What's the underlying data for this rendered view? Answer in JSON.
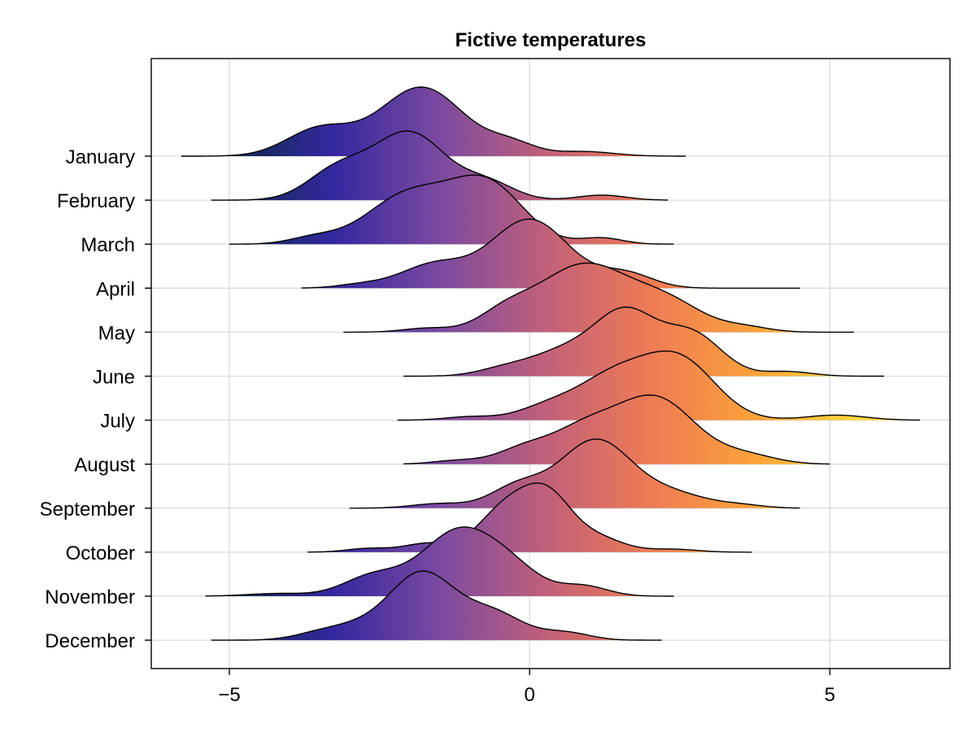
{
  "chart_data": {
    "type": "ridgeline",
    "title": "Fictive temperatures",
    "xlabel": "",
    "ylabel": "",
    "xlim": [
      -6.3,
      7.0
    ],
    "x_ticks": [
      -5,
      0,
      5
    ],
    "x_tick_labels": [
      "−5",
      "0",
      "5"
    ],
    "grid": true,
    "colormap": [
      "#0d2a4a",
      "#3528a0",
      "#7a4aa0",
      "#c0607a",
      "#ee7a55",
      "#fba23a",
      "#fdd83c"
    ],
    "color_range": [
      -5,
      5.5
    ],
    "categories": [
      "January",
      "February",
      "March",
      "April",
      "May",
      "June",
      "July",
      "August",
      "September",
      "October",
      "November",
      "December"
    ],
    "series": [
      {
        "name": "January",
        "x_range": [
          -5.8,
          2.6
        ],
        "components": [
          [
            -1.8,
            0.7,
            0.9
          ],
          [
            -3.5,
            0.55,
            0.35
          ],
          [
            -0.3,
            0.4,
            0.15
          ],
          [
            0.9,
            0.5,
            0.06
          ]
        ]
      },
      {
        "name": "February",
        "x_range": [
          -5.3,
          2.3
        ],
        "components": [
          [
            -2.0,
            0.6,
            0.8
          ],
          [
            -3.2,
            0.5,
            0.35
          ],
          [
            -0.7,
            0.45,
            0.2
          ],
          [
            1.2,
            0.4,
            0.06
          ]
        ]
      },
      {
        "name": "March",
        "x_range": [
          -5.0,
          2.4
        ],
        "components": [
          [
            -0.7,
            0.6,
            0.75
          ],
          [
            -2.0,
            0.7,
            0.65
          ],
          [
            -3.6,
            0.4,
            0.08
          ],
          [
            1.2,
            0.35,
            0.08
          ]
        ]
      },
      {
        "name": "April",
        "x_range": [
          -3.8,
          4.5
        ],
        "components": [
          [
            0.0,
            0.65,
            0.95
          ],
          [
            -1.6,
            0.55,
            0.32
          ],
          [
            1.6,
            0.45,
            0.2
          ],
          [
            -2.8,
            0.4,
            0.05
          ]
        ]
      },
      {
        "name": "May",
        "x_range": [
          -3.1,
          5.4
        ],
        "components": [
          [
            0.9,
            0.75,
            0.85
          ],
          [
            2.3,
            0.6,
            0.35
          ],
          [
            -0.4,
            0.45,
            0.22
          ],
          [
            -1.7,
            0.4,
            0.05
          ],
          [
            3.6,
            0.4,
            0.06
          ]
        ]
      },
      {
        "name": "June",
        "x_range": [
          -2.1,
          5.9
        ],
        "components": [
          [
            1.6,
            0.5,
            0.8
          ],
          [
            2.7,
            0.5,
            0.55
          ],
          [
            0.6,
            0.55,
            0.32
          ],
          [
            -0.4,
            0.45,
            0.1
          ],
          [
            4.3,
            0.4,
            0.06
          ]
        ]
      },
      {
        "name": "July",
        "x_range": [
          -2.2,
          6.5
        ],
        "components": [
          [
            2.5,
            0.6,
            0.7
          ],
          [
            1.4,
            0.6,
            0.5
          ],
          [
            0.3,
            0.5,
            0.15
          ],
          [
            -1.0,
            0.4,
            0.04
          ],
          [
            5.1,
            0.5,
            0.06
          ]
        ]
      },
      {
        "name": "August",
        "x_range": [
          -2.1,
          5.0
        ],
        "components": [
          [
            2.1,
            0.65,
            0.9
          ],
          [
            0.9,
            0.55,
            0.45
          ],
          [
            -0.1,
            0.45,
            0.2
          ],
          [
            -1.2,
            0.4,
            0.05
          ],
          [
            3.6,
            0.5,
            0.12
          ]
        ]
      },
      {
        "name": "September",
        "x_range": [
          -3.0,
          4.5
        ],
        "components": [
          [
            1.1,
            0.6,
            0.9
          ],
          [
            -0.2,
            0.45,
            0.28
          ],
          [
            2.4,
            0.55,
            0.18
          ],
          [
            -1.5,
            0.45,
            0.06
          ],
          [
            3.5,
            0.4,
            0.04
          ]
        ]
      },
      {
        "name": "October",
        "x_range": [
          -3.7,
          3.7
        ],
        "components": [
          [
            0.3,
            0.4,
            0.7
          ],
          [
            -0.4,
            0.45,
            0.6
          ],
          [
            1.1,
            0.45,
            0.2
          ],
          [
            -1.7,
            0.4,
            0.12
          ],
          [
            -2.7,
            0.35,
            0.05
          ],
          [
            2.4,
            0.4,
            0.04
          ]
        ]
      },
      {
        "name": "November",
        "x_range": [
          -5.4,
          2.4
        ],
        "components": [
          [
            -1.2,
            0.6,
            0.95
          ],
          [
            -0.3,
            0.5,
            0.35
          ],
          [
            -2.6,
            0.5,
            0.3
          ],
          [
            0.9,
            0.4,
            0.15
          ],
          [
            -4.2,
            0.5,
            0.04
          ]
        ]
      },
      {
        "name": "December",
        "x_range": [
          -5.3,
          2.2
        ],
        "components": [
          [
            -1.8,
            0.55,
            0.9
          ],
          [
            -0.6,
            0.5,
            0.35
          ],
          [
            -3.4,
            0.45,
            0.12
          ],
          [
            0.6,
            0.4,
            0.1
          ],
          [
            -2.8,
            0.4,
            0.1
          ]
        ]
      }
    ]
  }
}
